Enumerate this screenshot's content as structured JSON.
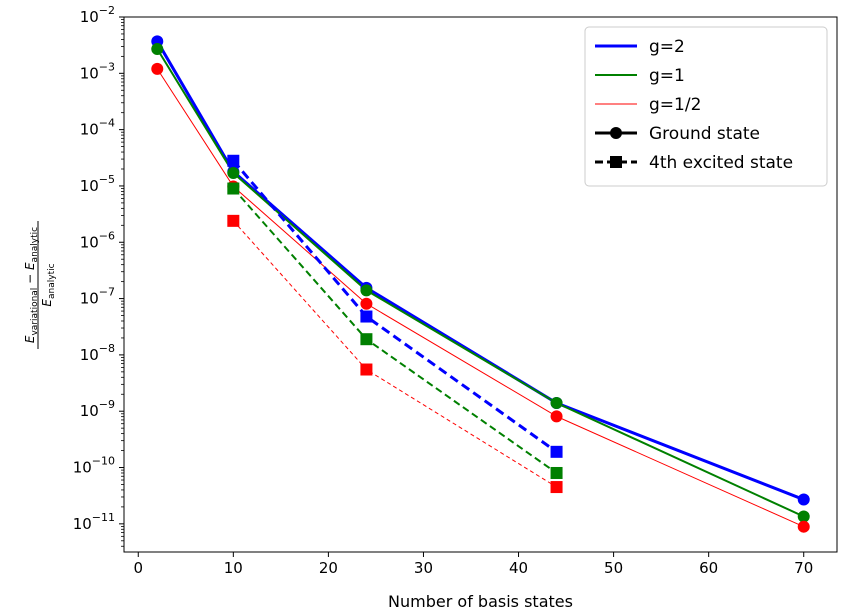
{
  "chart_data": {
    "type": "line",
    "xlabel": "Number of basis states",
    "ylabel": {
      "num_main_1": "E",
      "num_sub_1": "variational",
      "num_minus": " − ",
      "num_main_2": "E",
      "num_sub_2": "analytic",
      "den_main": "E",
      "den_sub": "analytic"
    },
    "xlim": [
      -1.5,
      73.5
    ],
    "ylim_log10": [
      -11.5,
      -2
    ],
    "y_scale": "log",
    "xticks": [
      0,
      10,
      20,
      30,
      40,
      50,
      60,
      70
    ],
    "yticks_exp": [
      -2,
      -3,
      -4,
      -5,
      -6,
      -7,
      -8,
      -9,
      -10,
      -11
    ],
    "ytick_base": "10",
    "grid": false,
    "legend_position": "top-right",
    "series": [
      {
        "group": "g=2",
        "state": "Ground state",
        "color": "#0000ff",
        "line_width": 3,
        "dash": "",
        "marker": "circle",
        "x": [
          2,
          10,
          24,
          44,
          70
        ],
        "y": [
          0.0037,
          1.8e-05,
          1.55e-07,
          1.4e-09,
          2.7e-11
        ]
      },
      {
        "group": "g=1",
        "state": "Ground state",
        "color": "#008000",
        "line_width": 2,
        "dash": "",
        "marker": "circle",
        "x": [
          2,
          10,
          24,
          44,
          70
        ],
        "y": [
          0.0027,
          1.7e-05,
          1.4e-07,
          1.4e-09,
          1.35e-11
        ]
      },
      {
        "group": "g=1/2",
        "state": "Ground state",
        "color": "#ff0000",
        "line_width": 1,
        "dash": "",
        "marker": "circle",
        "x": [
          2,
          10,
          24,
          44,
          70
        ],
        "y": [
          0.0012,
          9.8e-06,
          8.1e-08,
          8.1e-10,
          8.9e-12
        ]
      },
      {
        "group": "g=2",
        "state": "4th excited state",
        "color": "#0000ff",
        "line_width": 3,
        "dash": "9,5",
        "marker": "square",
        "x": [
          10,
          24,
          44
        ],
        "y": [
          2.8e-05,
          4.8e-08,
          1.9e-10
        ]
      },
      {
        "group": "g=1",
        "state": "4th excited state",
        "color": "#008000",
        "line_width": 2,
        "dash": "7,4",
        "marker": "square",
        "x": [
          10,
          24,
          44
        ],
        "y": [
          9e-06,
          1.9e-08,
          8e-11
        ]
      },
      {
        "group": "g=1/2",
        "state": "4th excited state",
        "color": "#ff0000",
        "line_width": 1,
        "dash": "4,3",
        "marker": "square",
        "x": [
          10,
          24,
          44
        ],
        "y": [
          2.4e-06,
          5.5e-09,
          4.5e-11
        ]
      }
    ],
    "legend": [
      {
        "label": "g=2",
        "color": "#0000ff",
        "line_width": 3,
        "dash": "",
        "marker": ""
      },
      {
        "label": "g=1",
        "color": "#008000",
        "line_width": 2,
        "dash": "",
        "marker": ""
      },
      {
        "label": "g=1/2",
        "color": "#ff0000",
        "line_width": 1,
        "dash": "",
        "marker": ""
      },
      {
        "label": "Ground state",
        "color": "#000000",
        "line_width": 3,
        "dash": "",
        "marker": "circle"
      },
      {
        "label": "4th excited state",
        "color": "#000000",
        "line_width": 3,
        "dash": "8,4",
        "marker": "square"
      }
    ]
  }
}
